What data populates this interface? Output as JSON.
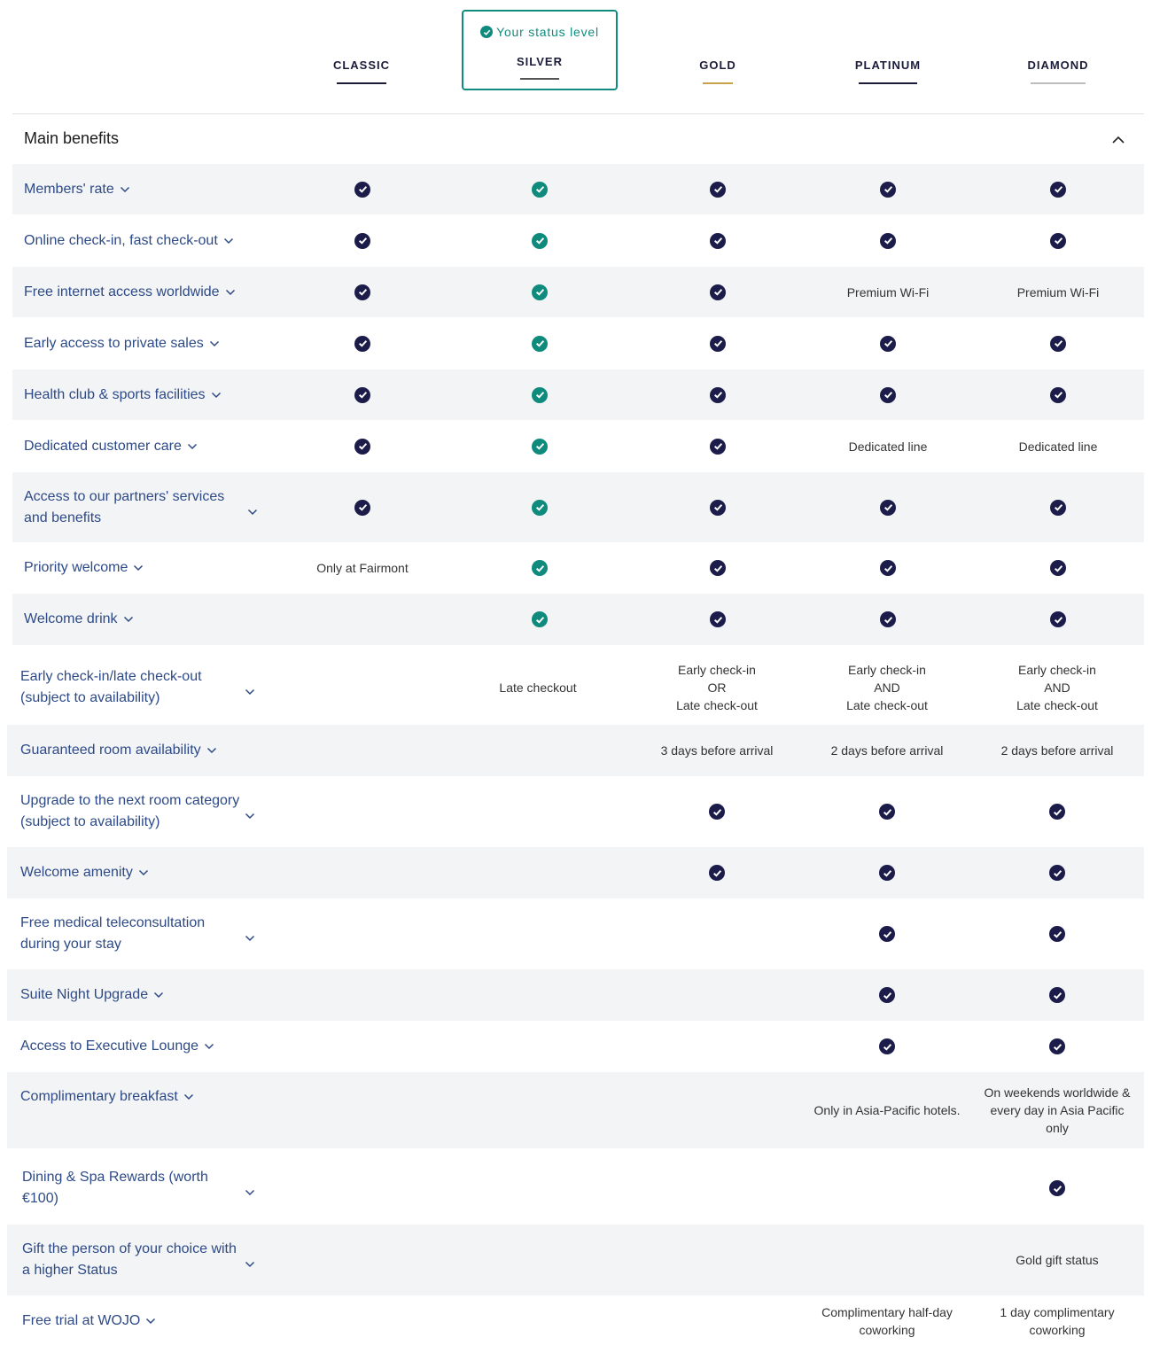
{
  "status_label": "Your status level",
  "tiers": [
    "CLASSIC",
    "SILVER",
    "GOLD",
    "PLATINUM",
    "DIAMOND"
  ],
  "tier_underline_colors": [
    "#1b1b3a",
    "#555555",
    "#c8a24a",
    "#1b1b3a",
    "#bdbdbd"
  ],
  "section_title": "Main benefits",
  "icons": {
    "check": "check-circle-icon",
    "chevron": "chevron-down-icon",
    "collapse": "chevron-up-icon"
  },
  "colors": {
    "accent": "#0f8b7d",
    "check_dark": "#1c1c4b",
    "label": "#2d4a87",
    "row_shade": "#f3f4f6"
  },
  "rows": [
    {
      "label": "Members' rate",
      "cells": [
        "check",
        "check",
        "check",
        "check",
        "check"
      ]
    },
    {
      "label": "Online check-in, fast check-out",
      "cells": [
        "check",
        "check",
        "check",
        "check",
        "check"
      ]
    },
    {
      "label": "Free internet access worldwide",
      "cells": [
        "check",
        "check",
        "check",
        "Premium Wi-Fi",
        "Premium Wi-Fi"
      ]
    },
    {
      "label": "Early access to private sales",
      "cells": [
        "check",
        "check",
        "check",
        "check",
        "check"
      ]
    },
    {
      "label": "Health club & sports facilities",
      "cells": [
        "check",
        "check",
        "check",
        "check",
        "check"
      ]
    },
    {
      "label": "Dedicated customer care",
      "cells": [
        "check",
        "check",
        "check",
        "Dedicated line",
        "Dedicated line"
      ]
    },
    {
      "label": "Access to our partners' services and benefits",
      "cells": [
        "check",
        "check",
        "check",
        "check",
        "check"
      ]
    },
    {
      "label": "Priority welcome",
      "cells": [
        "Only at Fairmont",
        "check",
        "check",
        "check",
        "check"
      ]
    },
    {
      "label": "Welcome drink",
      "cells": [
        "",
        "check",
        "check",
        "check",
        "check"
      ]
    },
    {
      "label": "Early check-in/late check-out (subject to availability)",
      "cells": [
        "",
        "Late checkout",
        "Early check-in\nOR\nLate check-out",
        "Early check-in\nAND\nLate check-out",
        "Early check-in\nAND\nLate check-out"
      ]
    },
    {
      "label": "Guaranteed room availability",
      "cells": [
        "",
        "",
        "3 days before arrival",
        "2 days before arrival",
        "2 days before arrival"
      ]
    },
    {
      "label": "Upgrade to the next room category (subject to availability)",
      "cells": [
        "",
        "",
        "check",
        "check",
        "check"
      ]
    },
    {
      "label": "Welcome amenity",
      "cells": [
        "",
        "",
        "check",
        "check",
        "check"
      ]
    },
    {
      "label": "Free medical teleconsultation during your stay",
      "cells": [
        "",
        "",
        "",
        "check",
        "check"
      ]
    },
    {
      "label": "Suite Night Upgrade",
      "cells": [
        "",
        "",
        "",
        "check",
        "check"
      ]
    },
    {
      "label": "Access to Executive Lounge",
      "cells": [
        "",
        "",
        "",
        "check",
        "check"
      ]
    },
    {
      "label": "Complimentary breakfast",
      "cells": [
        "",
        "",
        "",
        "Only in Asia-Pacific hotels.",
        "On weekends worldwide & every day in Asia Pacific only"
      ]
    },
    {
      "label": "Dining & Spa Rewards (worth €100)",
      "cells": [
        "",
        "",
        "",
        "",
        "check"
      ]
    },
    {
      "label": "Gift the person of your choice with a higher Status",
      "cells": [
        "",
        "",
        "",
        "",
        "Gold gift status"
      ]
    },
    {
      "label": "Free trial at WOJO",
      "cells": [
        "",
        "",
        "",
        "Complimentary half-day coworking",
        "1 day complimentary coworking"
      ]
    }
  ]
}
